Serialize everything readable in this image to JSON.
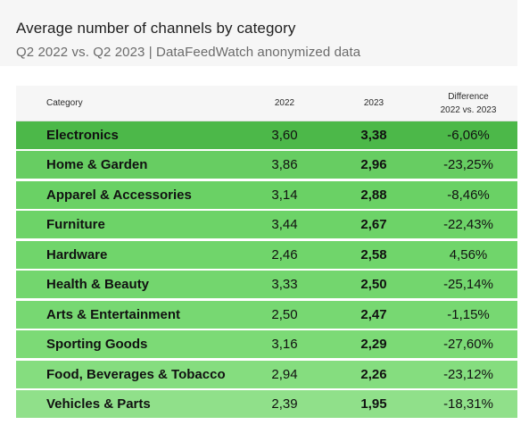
{
  "header": {
    "title": "Average number of channels by category",
    "subtitle": "Q2 2022 vs. Q2 2023 | DataFeedWatch anonymized data"
  },
  "table": {
    "columns": [
      "Category",
      "2022",
      "2023",
      "Difference",
      "2022 vs. 2023"
    ],
    "rows": [
      {
        "category": "Electronics",
        "v2022": "3,60",
        "v2023": "3,38",
        "diff": "-6,06%",
        "color": "#4cb849"
      },
      {
        "category": "Home & Garden",
        "v2022": "3,86",
        "v2023": "2,96",
        "diff": "-23,25%",
        "color": "#67cd62"
      },
      {
        "category": "Apparel & Accessories",
        "v2022": "3,14",
        "v2023": "2,88",
        "diff": "-8,46%",
        "color": "#6ad165"
      },
      {
        "category": "Furniture",
        "v2022": "3,44",
        "v2023": "2,67",
        "diff": "-22,43%",
        "color": "#6dd368"
      },
      {
        "category": "Hardware",
        "v2022": "2,46",
        "v2023": "2,58",
        "diff": "4,56%",
        "color": "#70d56b"
      },
      {
        "category": "Health & Beauty",
        "v2022": "3,33",
        "v2023": "2,50",
        "diff": "-25,14%",
        "color": "#73d66e"
      },
      {
        "category": "Arts & Entertainment",
        "v2022": "2,50",
        "v2023": "2,47",
        "diff": "-1,15%",
        "color": "#77d872"
      },
      {
        "category": "Sporting Goods",
        "v2022": "3,16",
        "v2023": "2,29",
        "diff": "-27,60%",
        "color": "#7cda76"
      },
      {
        "category": "Food, Beverages & Tobacco",
        "v2022": "2,94",
        "v2023": "2,26",
        "diff": "-23,12%",
        "color": "#85dd7f"
      },
      {
        "category": "Vehicles & Parts",
        "v2022": "2,39",
        "v2023": "1,95",
        "diff": "-18,31%",
        "color": "#90e08a"
      }
    ]
  },
  "chart_data": {
    "type": "table",
    "title": "Average number of channels by category",
    "subtitle": "Q2 2022 vs. Q2 2023 | DataFeedWatch anonymized data",
    "columns": [
      "Category",
      "2022",
      "2023",
      "Difference 2022 vs. 2023"
    ],
    "categories": [
      "Electronics",
      "Home & Garden",
      "Apparel & Accessories",
      "Furniture",
      "Hardware",
      "Health & Beauty",
      "Arts & Entertainment",
      "Sporting Goods",
      "Food, Beverages & Tobacco",
      "Vehicles & Parts"
    ],
    "series": [
      {
        "name": "2022",
        "values": [
          3.6,
          3.86,
          3.14,
          3.44,
          2.46,
          3.33,
          2.5,
          3.16,
          2.94,
          2.39
        ]
      },
      {
        "name": "2023",
        "values": [
          3.38,
          2.96,
          2.88,
          2.67,
          2.58,
          2.5,
          2.47,
          2.29,
          2.26,
          1.95
        ]
      },
      {
        "name": "Difference 2022 vs. 2023",
        "values": [
          -6.06,
          -23.25,
          -8.46,
          -22.43,
          4.56,
          -25.14,
          -1.15,
          -27.6,
          -23.12,
          -18.31
        ]
      }
    ]
  }
}
